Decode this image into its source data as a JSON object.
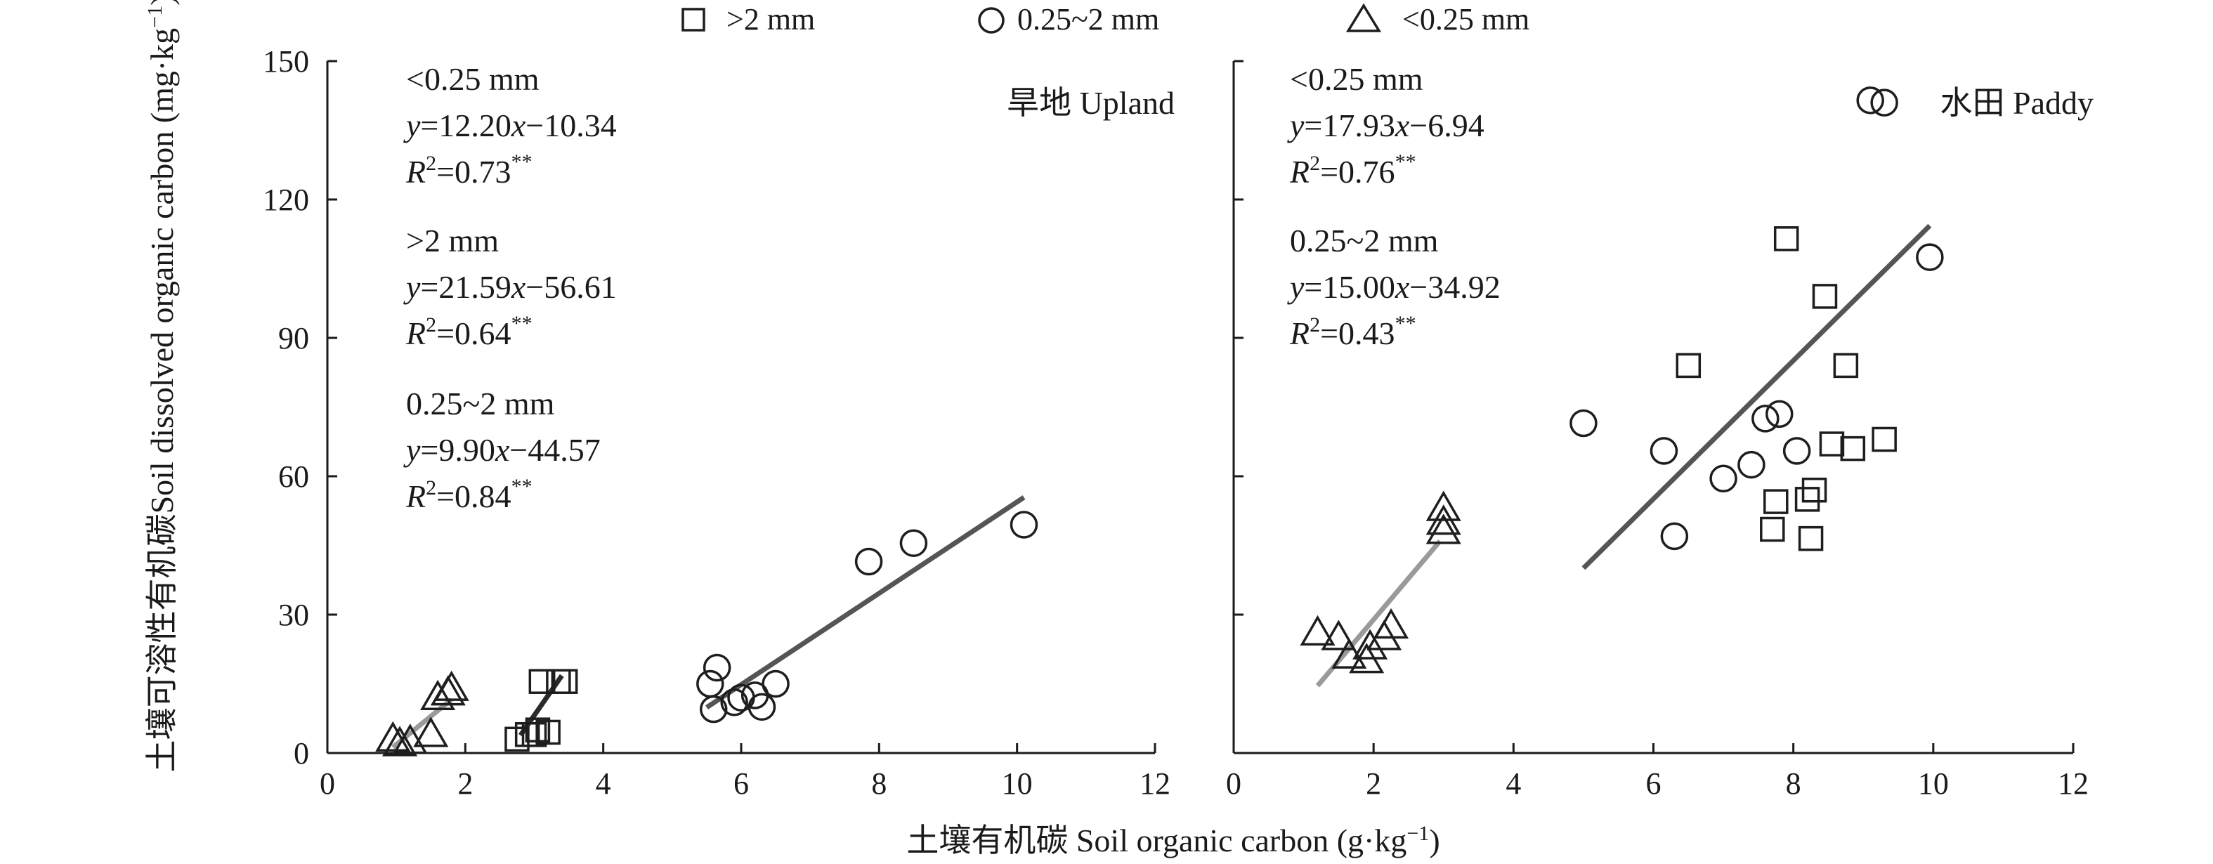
{
  "legend": {
    "items": [
      {
        "marker": "square",
        "label": ">2 mm"
      },
      {
        "marker": "circle",
        "label": "0.25~2 mm"
      },
      {
        "marker": "triangle",
        "label": "<0.25 mm"
      }
    ]
  },
  "shared_axes": {
    "xlabel": "土壤有机碳 Soil organic carbon (g·kg",
    "xlabel_sup": "−1",
    "xlabel_tail": ")",
    "ylabel_cn": "土壤可溶性有机碳",
    "ylabel_en": "Soil dissolved organic carbon (mg·kg",
    "ylabel_sup": "−1",
    "ylabel_tail": ")"
  },
  "colors": {
    "marker_stroke": "#1e1e1e",
    "line_gt2": "#2b2b2b",
    "line_mid": "#555555",
    "line_lt025": "#9a9a9a"
  },
  "chart_data": [
    {
      "type": "scatter",
      "panel_label": "旱地 Upland",
      "xlim": [
        0,
        12
      ],
      "ylim": [
        0,
        150
      ],
      "xticks": [
        0,
        2,
        4,
        6,
        8,
        10,
        12
      ],
      "yticks": [
        0,
        30,
        60,
        90,
        120,
        150
      ],
      "series": [
        {
          "name": ">2 mm",
          "marker": "square",
          "points": [
            [
              2.75,
              3
            ],
            [
              2.9,
              4
            ],
            [
              3.0,
              4
            ],
            [
              3.05,
              5
            ],
            [
              3.2,
              4.5
            ],
            [
              3.1,
              15.5
            ],
            [
              3.35,
              15.5
            ],
            [
              3.45,
              15.5
            ]
          ],
          "fit": {
            "slope": 21.59,
            "intercept": -56.61,
            "x_range": [
              2.8,
              3.4
            ]
          }
        },
        {
          "name": "0.25~2 mm",
          "marker": "circle",
          "points": [
            [
              5.55,
              15
            ],
            [
              5.65,
              18.5
            ],
            [
              5.6,
              9.5
            ],
            [
              5.9,
              11
            ],
            [
              6.0,
              12
            ],
            [
              6.2,
              12.5
            ],
            [
              6.3,
              10
            ],
            [
              6.5,
              15
            ],
            [
              7.85,
              41.5
            ],
            [
              8.5,
              45.5
            ],
            [
              10.1,
              49.5
            ]
          ],
          "fit": {
            "slope": 9.9,
            "intercept": -44.57,
            "x_range": [
              5.5,
              10.1
            ]
          }
        },
        {
          "name": "<0.25 mm",
          "marker": "triangle",
          "points": [
            [
              0.95,
              3
            ],
            [
              1.05,
              2
            ],
            [
              1.2,
              2.5
            ],
            [
              1.5,
              4
            ],
            [
              1.6,
              12
            ],
            [
              1.75,
              13
            ],
            [
              1.8,
              14
            ]
          ],
          "fit": {
            "slope": 12.2,
            "intercept": -10.34,
            "x_range": [
              0.95,
              1.8
            ]
          }
        }
      ],
      "annotations": [
        {
          "group": "<0.25 mm",
          "eq_pre": "y",
          "eq_mid": "=12.20",
          "eq_var": "x",
          "eq_end": "−10.34",
          "r2_value": "=0.73",
          "r2_stars": "**"
        },
        {
          "group": ">2 mm",
          "eq_pre": "y",
          "eq_mid": "=21.59",
          "eq_var": "x",
          "eq_end": "−56.61",
          "r2_value": "=0.64",
          "r2_stars": "**"
        },
        {
          "group": "0.25~2 mm",
          "eq_pre": "y",
          "eq_mid": "=9.90",
          "eq_var": "x",
          "eq_end": "−44.57",
          "r2_value": "=0.84",
          "r2_stars": "**"
        }
      ]
    },
    {
      "type": "scatter",
      "panel_label": "水田 Paddy",
      "xlim": [
        0,
        12
      ],
      "ylim": [
        0,
        150
      ],
      "xticks": [
        0,
        2,
        4,
        6,
        8,
        10,
        12
      ],
      "yticks": [
        0,
        30,
        60,
        90,
        120,
        150
      ],
      "series": [
        {
          "name": ">2 mm",
          "marker": "square",
          "points": [
            [
              7.9,
              111.5
            ],
            [
              8.45,
              99
            ],
            [
              6.5,
              84
            ],
            [
              8.75,
              84
            ],
            [
              8.55,
              67
            ],
            [
              9.3,
              68
            ],
            [
              8.85,
              66
            ],
            [
              7.75,
              54.5
            ],
            [
              8.3,
              57
            ],
            [
              8.2,
              55
            ],
            [
              7.7,
              48.5
            ],
            [
              8.25,
              46.5
            ]
          ],
          "fit": null
        },
        {
          "name": "0.25~2 mm",
          "marker": "circle",
          "points": [
            [
              9.1,
              141.5
            ],
            [
              9.3,
              141
            ],
            [
              9.95,
              107.5
            ],
            [
              5.0,
              71.5
            ],
            [
              6.15,
              65.5
            ],
            [
              6.3,
              47
            ],
            [
              7.0,
              59.5
            ],
            [
              7.4,
              62.5
            ],
            [
              7.6,
              72.5
            ],
            [
              7.8,
              73.5
            ],
            [
              8.05,
              65.5
            ]
          ],
          "fit": {
            "slope": 15.0,
            "intercept": -34.92,
            "x_range": [
              5.0,
              9.95
            ]
          }
        },
        {
          "name": "<0.25 mm",
          "marker": "triangle",
          "points": [
            [
              1.2,
              26
            ],
            [
              1.5,
              25
            ],
            [
              1.65,
              21
            ],
            [
              1.9,
              20
            ],
            [
              1.95,
              23
            ],
            [
              2.15,
              25
            ],
            [
              2.25,
              27.5
            ],
            [
              3.0,
              48
            ],
            [
              3.0,
              50
            ],
            [
              3.0,
              53
            ]
          ],
          "fit": {
            "slope": 17.93,
            "intercept": -6.94,
            "x_range": [
              1.2,
              2.95
            ]
          }
        }
      ],
      "annotations": [
        {
          "group": "<0.25 mm",
          "eq_pre": "y",
          "eq_mid": "=17.93",
          "eq_var": "x",
          "eq_end": "−6.94",
          "r2_value": "=0.76",
          "r2_stars": "**"
        },
        {
          "group": "0.25~2 mm",
          "eq_pre": "y",
          "eq_mid": "=15.00",
          "eq_var": "x",
          "eq_end": "−34.92",
          "r2_value": "=0.43",
          "r2_stars": "**"
        }
      ]
    }
  ]
}
